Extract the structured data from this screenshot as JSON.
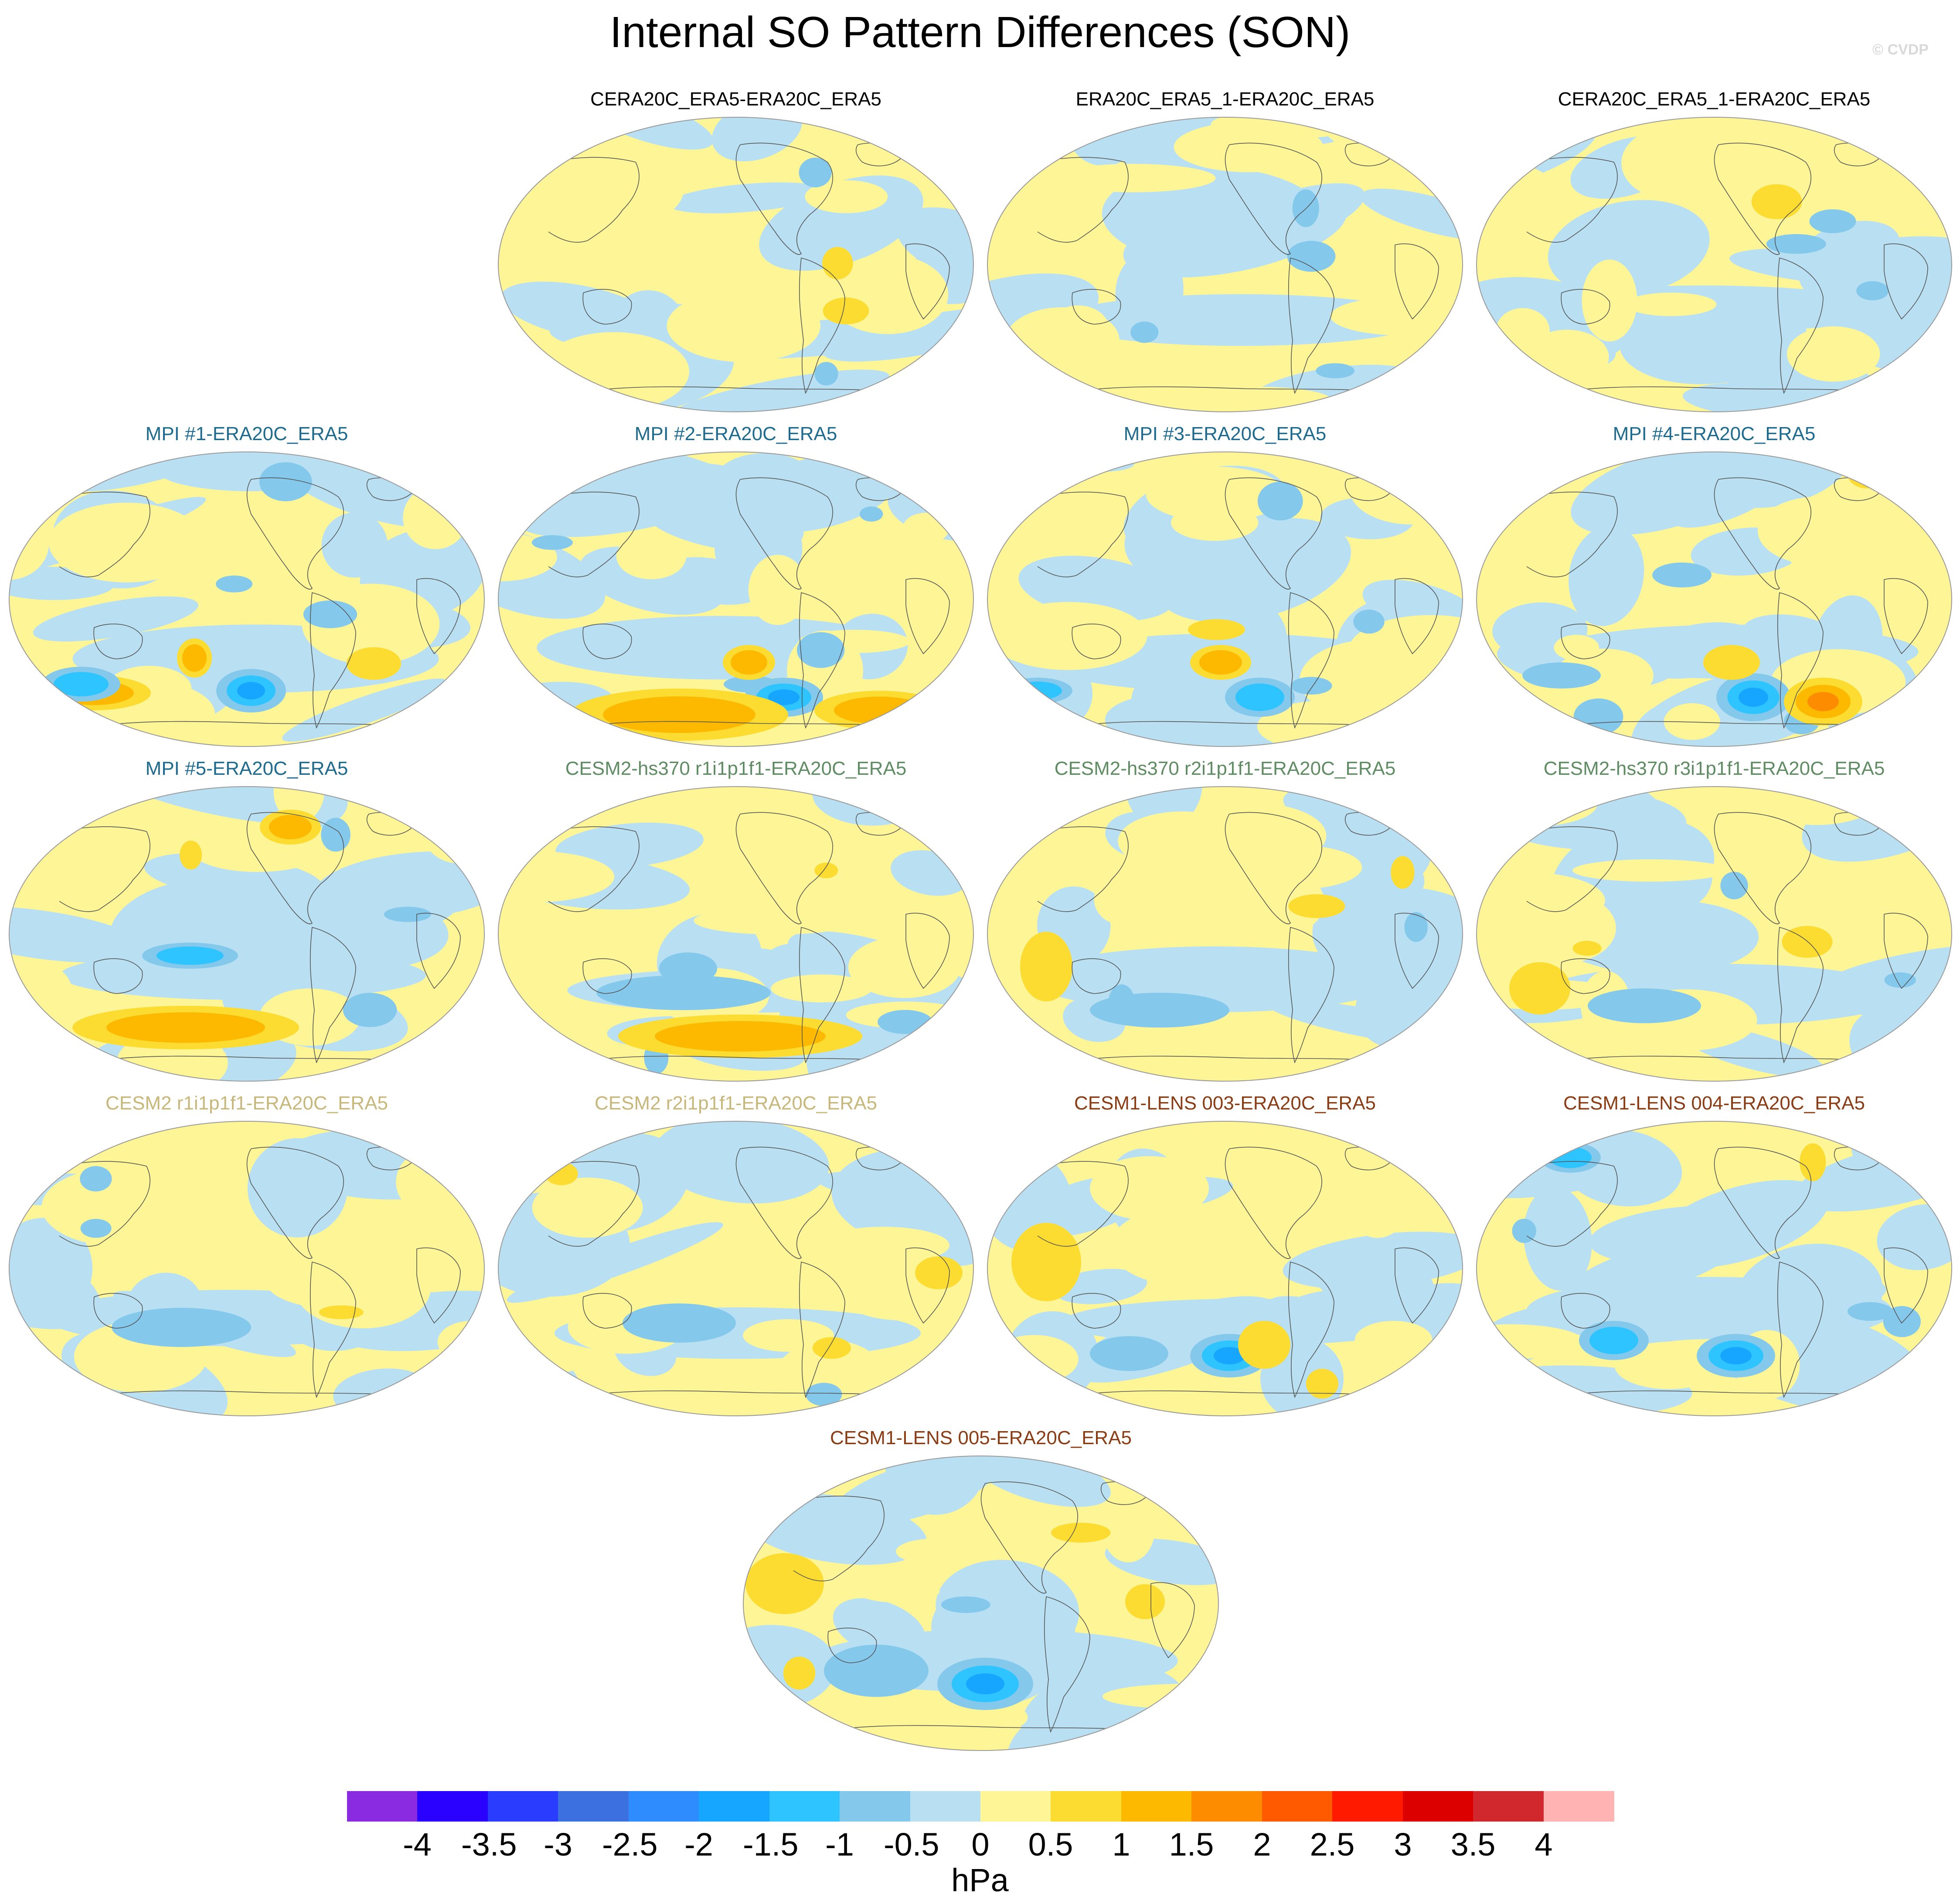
{
  "title": "Internal SO Pattern Differences (SON)",
  "credit": "© CVDP",
  "colors": {
    "levels": [
      "#8a2be2",
      "#2a00ff",
      "#2a3dff",
      "#3c6fe0",
      "#2e8cff",
      "#17a6ff",
      "#2ec4ff",
      "#84c8ec",
      "#b8e0f2",
      "#fdf596",
      "#fddc32",
      "#fdb800",
      "#fd8c00",
      "#ff5a00",
      "#ff1a00",
      "#dc0000",
      "#d0282d",
      "#ffb3b3"
    ],
    "land_outline": "#555555",
    "obs_title": "#000000",
    "mpi_title": "#1e6b8f",
    "hs370_title": "#5f8c63",
    "cesm2_title": "#c8b77a",
    "lens_title": "#8a3d15"
  },
  "panels": [
    {
      "title": "CERA20C_ERA5-ERA20C_ERA5",
      "group": "obs",
      "icon": "world-map-icon"
    },
    {
      "title": "ERA20C_ERA5_1-ERA20C_ERA5",
      "group": "obs",
      "icon": "world-map-icon"
    },
    {
      "title": "CERA20C_ERA5_1-ERA20C_ERA5",
      "group": "obs",
      "icon": "world-map-icon"
    },
    {
      "title": "MPI #1-ERA20C_ERA5",
      "group": "mpi",
      "icon": "world-map-icon"
    },
    {
      "title": "MPI #2-ERA20C_ERA5",
      "group": "mpi",
      "icon": "world-map-icon"
    },
    {
      "title": "MPI #3-ERA20C_ERA5",
      "group": "mpi",
      "icon": "world-map-icon"
    },
    {
      "title": "MPI #4-ERA20C_ERA5",
      "group": "mpi",
      "icon": "world-map-icon"
    },
    {
      "title": "MPI #5-ERA20C_ERA5",
      "group": "mpi",
      "icon": "world-map-icon"
    },
    {
      "title": "CESM2-hs370 r1i1p1f1-ERA20C_ERA5",
      "group": "hs370",
      "icon": "world-map-icon"
    },
    {
      "title": "CESM2-hs370 r2i1p1f1-ERA20C_ERA5",
      "group": "hs370",
      "icon": "world-map-icon"
    },
    {
      "title": "CESM2-hs370 r3i1p1f1-ERA20C_ERA5",
      "group": "hs370",
      "icon": "world-map-icon"
    },
    {
      "title": "CESM2 r1i1p1f1-ERA20C_ERA5",
      "group": "cesm2",
      "icon": "world-map-icon"
    },
    {
      "title": "CESM2 r2i1p1f1-ERA20C_ERA5",
      "group": "cesm2",
      "icon": "world-map-icon"
    },
    {
      "title": "CESM1-LENS 003-ERA20C_ERA5",
      "group": "lens",
      "icon": "world-map-icon"
    },
    {
      "title": "CESM1-LENS 004-ERA20C_ERA5",
      "group": "lens",
      "icon": "world-map-icon"
    },
    {
      "title": "CESM1-LENS 005-ERA20C_ERA5",
      "group": "lens",
      "icon": "world-map-icon"
    }
  ],
  "colorbar": {
    "ticks": [
      "-4",
      "-3.5",
      "-3",
      "-2.5",
      "-2",
      "-1.5",
      "-1",
      "-0.5",
      "0",
      "0.5",
      "1",
      "1.5",
      "2",
      "2.5",
      "3",
      "3.5",
      "4"
    ],
    "units": "hPa"
  }
}
